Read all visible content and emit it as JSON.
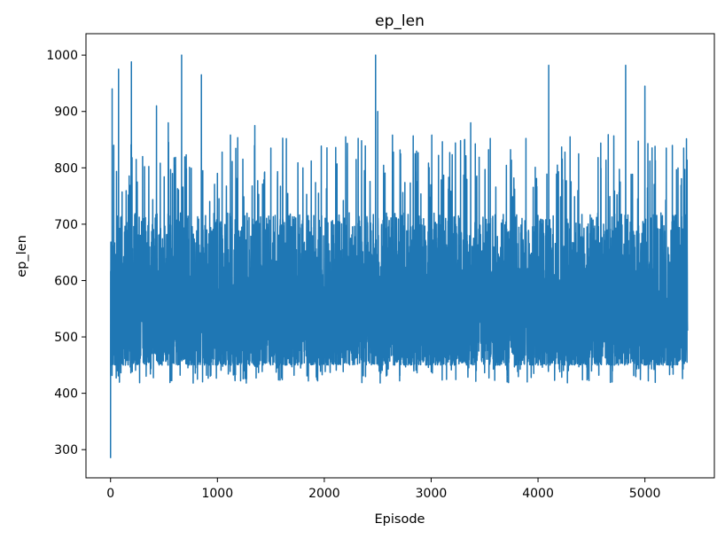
{
  "chart_data": {
    "type": "line",
    "title": "ep_len",
    "xlabel": "Episode",
    "ylabel": "ep_len",
    "xlim": [
      -230,
      5650
    ],
    "ylim": [
      250,
      1038
    ],
    "xticks": [
      0,
      1000,
      2000,
      3000,
      4000,
      5000
    ],
    "yticks": [
      300,
      400,
      500,
      600,
      700,
      800,
      900,
      1000
    ],
    "grid": false,
    "legend": "none",
    "series_color": "#1f77b4",
    "series": [
      {
        "n_points": 5400,
        "x_start": 0,
        "x_step": 1,
        "first_value": 285,
        "typical_low": 450,
        "typical_high": 720,
        "envelope_low": 418,
        "envelope_high": 1000,
        "peaks": [
          {
            "x": 15,
            "y": 940
          },
          {
            "x": 30,
            "y": 840
          },
          {
            "x": 75,
            "y": 975
          },
          {
            "x": 195,
            "y": 988
          },
          {
            "x": 300,
            "y": 820
          },
          {
            "x": 430,
            "y": 910
          },
          {
            "x": 540,
            "y": 880
          },
          {
            "x": 665,
            "y": 1000
          },
          {
            "x": 850,
            "y": 965
          },
          {
            "x": 1000,
            "y": 790
          },
          {
            "x": 1350,
            "y": 875
          },
          {
            "x": 1500,
            "y": 835
          },
          {
            "x": 1800,
            "y": 800
          },
          {
            "x": 2200,
            "y": 855
          },
          {
            "x": 2480,
            "y": 1000
          },
          {
            "x": 2500,
            "y": 900
          },
          {
            "x": 2850,
            "y": 825
          },
          {
            "x": 3370,
            "y": 880
          },
          {
            "x": 4100,
            "y": 982
          },
          {
            "x": 4300,
            "y": 855
          },
          {
            "x": 4820,
            "y": 982
          },
          {
            "x": 5000,
            "y": 945
          },
          {
            "x": 5200,
            "y": 835
          }
        ]
      }
    ]
  }
}
